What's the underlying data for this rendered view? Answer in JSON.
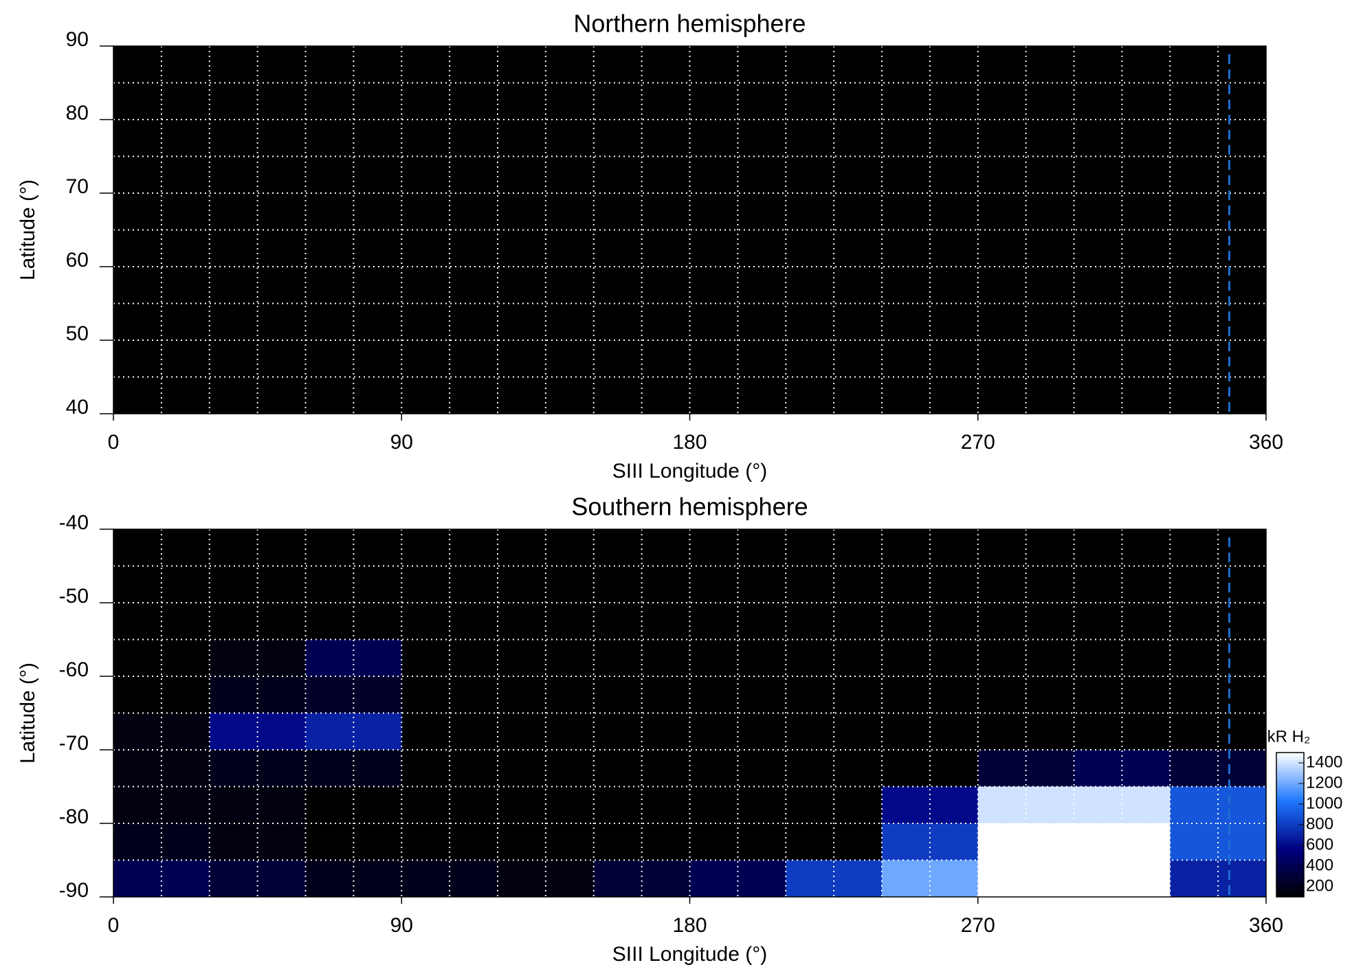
{
  "chart_data": [
    {
      "type": "heatmap",
      "title": "Northern hemisphere",
      "xlabel": "SIII Longitude (°)",
      "ylabel": "Latitude (°)",
      "xlim": [
        0,
        360
      ],
      "xticks": [
        0,
        90,
        180,
        270,
        360
      ],
      "ylim": [
        40,
        90
      ],
      "yticks": [
        40,
        50,
        60,
        70,
        80,
        90
      ],
      "xgrid": [
        15,
        30,
        45,
        60,
        75,
        90,
        105,
        120,
        135,
        150,
        165,
        180,
        195,
        210,
        225,
        240,
        255,
        270,
        285,
        300,
        315,
        330,
        345
      ],
      "ygrid": [
        45,
        50,
        55,
        60,
        65,
        70,
        75,
        80,
        85
      ],
      "dashed_line_x": 348.5,
      "dashed_line_color": "#1f6fd0"
    },
    {
      "type": "heatmap",
      "title": "Southern hemisphere",
      "xlabel": "SIII Longitude (°)",
      "ylabel": "Latitude (°)",
      "xlim": [
        0,
        360
      ],
      "xticks": [
        0,
        90,
        180,
        270,
        360
      ],
      "ylim": [
        -90,
        -40
      ],
      "yticks": [
        -90,
        -80,
        -70,
        -60,
        -50,
        -40
      ],
      "xgrid": [
        15,
        30,
        45,
        60,
        75,
        90,
        105,
        120,
        135,
        150,
        165,
        180,
        195,
        210,
        225,
        240,
        255,
        270,
        285,
        300,
        315,
        330,
        345
      ],
      "ygrid": [
        -85,
        -80,
        -75,
        -70,
        -65,
        -60,
        -55,
        -50,
        -45
      ],
      "dashed_line_x": 348.5,
      "dashed_line_color": "#1f6fd0",
      "lon_bins": [
        0,
        30,
        60,
        90,
        120,
        150,
        180,
        210,
        240,
        270,
        300,
        330,
        360
      ],
      "lat_bins": [
        -40,
        -45,
        -50,
        -55,
        -60,
        -65,
        -70,
        -75,
        -80,
        -85,
        -90
      ],
      "values": [
        [
          50,
          50,
          40,
          0,
          0,
          0,
          0,
          0,
          0,
          0,
          0,
          60
        ],
        [
          50,
          50,
          40,
          0,
          0,
          0,
          0,
          0,
          0,
          0,
          0,
          60
        ],
        [
          60,
          60,
          50,
          0,
          0,
          0,
          0,
          0,
          0,
          0,
          0,
          60
        ],
        [
          80,
          150,
          400,
          0,
          0,
          0,
          0,
          0,
          0,
          0,
          0,
          60
        ],
        [
          100,
          200,
          250,
          0,
          0,
          0,
          0,
          0,
          0,
          0,
          0,
          60
        ],
        [
          150,
          600,
          700,
          0,
          0,
          0,
          0,
          0,
          0,
          0,
          0,
          80
        ],
        [
          150,
          200,
          200,
          0,
          0,
          0,
          0,
          0,
          0,
          300,
          400,
          300
        ],
        [
          150,
          150,
          100,
          0,
          0,
          0,
          0,
          0,
          600,
          1400,
          1400,
          900
        ],
        [
          200,
          150,
          100,
          0,
          0,
          0,
          0,
          50,
          800,
          1500,
          1500,
          900
        ],
        [
          400,
          300,
          200,
          200,
          150,
          300,
          400,
          800,
          1200,
          1500,
          1500,
          700
        ]
      ],
      "zlim": [
        100,
        1500
      ],
      "colormap": [
        "#000000",
        "#000080",
        "#1e78ff",
        "#ffffff"
      ],
      "colorbar_label": "kR H₂",
      "colorbar_ticks": [
        200,
        400,
        600,
        800,
        1000,
        1200,
        1400
      ]
    }
  ]
}
